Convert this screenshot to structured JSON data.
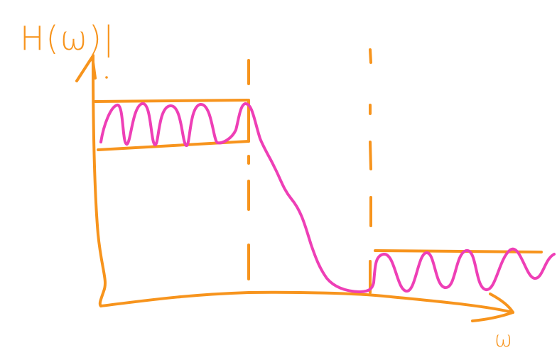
{
  "axes": {
    "y_label": "H(ω)|",
    "x_label": "ω"
  },
  "colors": {
    "axes_and_bands": "#f7941d",
    "response_curve": "#ee3fb6",
    "background": "#ffffff"
  }
}
